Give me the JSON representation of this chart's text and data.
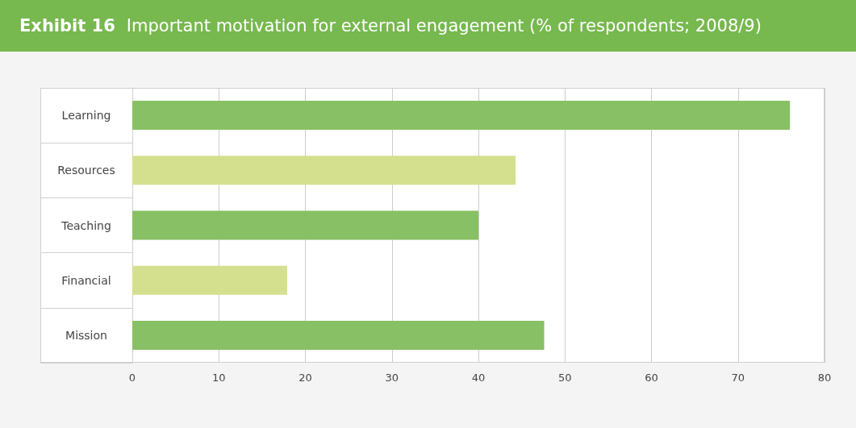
{
  "chart_data": {
    "type": "bar",
    "orientation": "horizontal",
    "title": "Exhibit 16",
    "subtitle": "Important motivation for external engagement (% of respondents; 2008/9)",
    "categories": [
      "Learning",
      "Resources",
      "Teaching",
      "Financial",
      "Mission"
    ],
    "values": [
      76,
      44.3,
      40,
      17.9,
      47.6
    ],
    "colors": [
      "#88c065",
      "#d5e08f",
      "#88c065",
      "#d5e08f",
      "#88c065"
    ],
    "xlim": [
      0,
      80
    ],
    "xticks": [
      0,
      10,
      20,
      30,
      40,
      50,
      60,
      70,
      80
    ],
    "grid": "x"
  }
}
